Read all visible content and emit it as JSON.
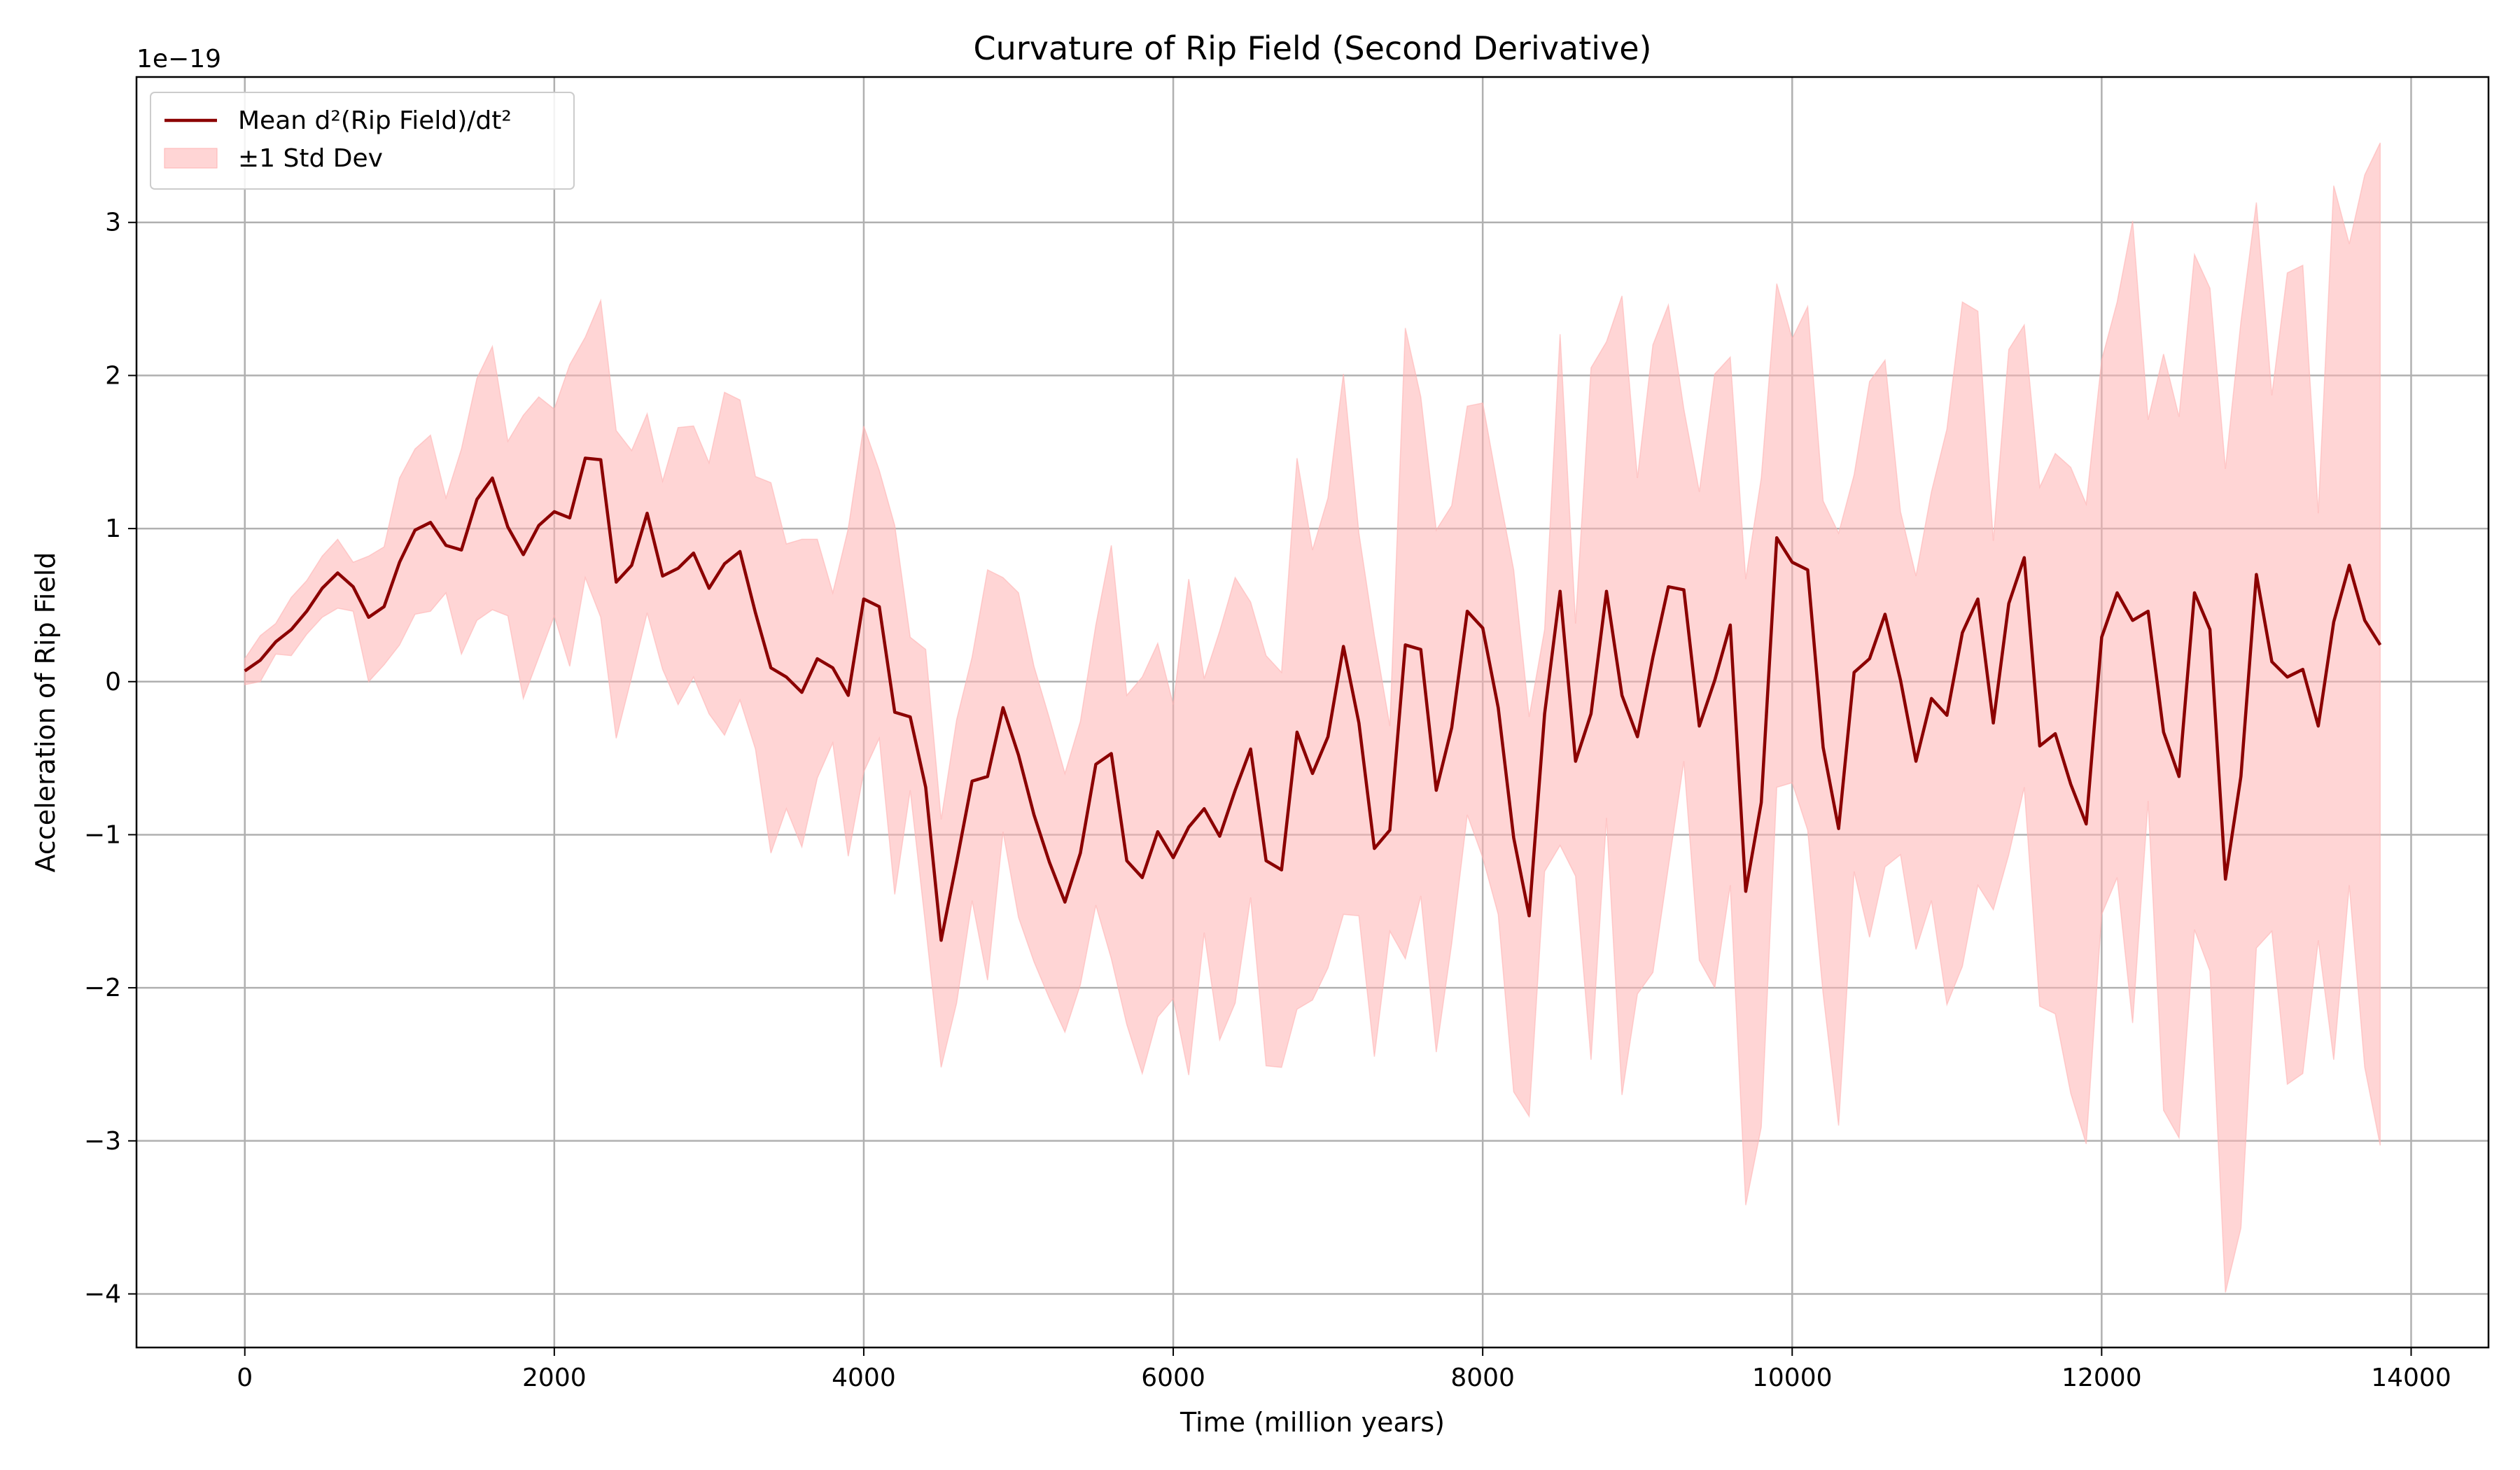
{
  "chart_data": {
    "type": "line",
    "title": "Curvature of Rip Field (Second Derivative)",
    "xlabel": "Time (million years)",
    "ylabel": "Acceleration of Rip Field",
    "offset_text": "1e−19",
    "xlim": [
      -700,
      14500
    ],
    "ylim": [
      -4.35,
      3.95
    ],
    "x_ticks": [
      0,
      2000,
      4000,
      6000,
      8000,
      10000,
      12000,
      14000
    ],
    "y_ticks": [
      -4,
      -3,
      -2,
      -1,
      0,
      1,
      2,
      3
    ],
    "x_tick_labels": [
      "0",
      "2000",
      "4000",
      "6000",
      "8000",
      "10000",
      "12000",
      "14000"
    ],
    "y_tick_labels": [
      "−4",
      "−3",
      "−2",
      "−1",
      "0",
      "1",
      "2",
      "3"
    ],
    "grid": true,
    "legend_position": "top-left",
    "x_step": 100,
    "series": [
      {
        "name": "Mean d²(Rip Field)/dt²",
        "kind": "line",
        "color": "#8b0000",
        "values": [
          0.07,
          0.14,
          0.26,
          0.34,
          0.46,
          0.61,
          0.71,
          0.62,
          0.42,
          0.49,
          0.78,
          0.99,
          1.04,
          0.89,
          0.86,
          1.19,
          1.33,
          1.01,
          0.83,
          1.02,
          1.11,
          1.07,
          1.46,
          1.45,
          0.65,
          0.76,
          1.1,
          0.69,
          0.74,
          0.84,
          0.61,
          0.77,
          0.85,
          0.45,
          0.09,
          0.03,
          -0.07,
          0.15,
          0.09,
          -0.09,
          0.54,
          0.49,
          -0.2,
          -0.23,
          -0.69,
          -1.69,
          -1.18,
          -0.65,
          -0.62,
          -0.17,
          -0.48,
          -0.87,
          -1.18,
          -1.44,
          -1.12,
          -0.54,
          -0.47,
          -1.17,
          -1.28,
          -0.98,
          -1.15,
          -0.95,
          -0.83,
          -1.01,
          -0.71,
          -0.44,
          -1.17,
          -1.23,
          -0.33,
          -0.6,
          -0.36,
          0.23,
          -0.27,
          -1.09,
          -0.97,
          0.24,
          0.21,
          -0.71,
          -0.3,
          0.46,
          0.35,
          -0.17,
          -1.02,
          -1.53,
          -0.21,
          0.59,
          -0.52,
          -0.21,
          0.59,
          -0.09,
          -0.36,
          0.16,
          0.62,
          0.6,
          -0.29,
          0.01,
          0.37,
          -1.37,
          -0.79,
          0.94,
          0.78,
          0.73,
          -0.43,
          -0.96,
          0.06,
          0.15,
          0.44,
          0.01,
          -0.52,
          -0.11,
          -0.22,
          0.32,
          0.54,
          -0.27,
          0.51,
          0.81,
          -0.42,
          -0.34,
          -0.67,
          -0.93,
          0.29,
          0.58,
          0.4,
          0.46,
          -0.33,
          -0.62,
          0.58,
          0.34,
          -1.29,
          -0.62,
          0.7,
          0.13,
          0.03,
          0.08,
          -0.29,
          0.39,
          0.76,
          0.4,
          0.24
        ]
      },
      {
        "name": "±1 Std Dev",
        "kind": "band",
        "color": "#ffb3b3",
        "upper": [
          0.15,
          0.3,
          0.38,
          0.55,
          0.66,
          0.82,
          0.93,
          0.78,
          0.82,
          0.88,
          1.33,
          1.52,
          1.61,
          1.2,
          1.52,
          1.98,
          2.19,
          1.57,
          1.74,
          1.86,
          1.78,
          2.07,
          2.25,
          2.49,
          1.64,
          1.51,
          1.75,
          1.31,
          1.66,
          1.67,
          1.43,
          1.89,
          1.84,
          1.34,
          1.3,
          0.9,
          0.93,
          0.93,
          0.58,
          1.0,
          1.67,
          1.38,
          1.02,
          0.29,
          0.21,
          -0.9,
          -0.25,
          0.16,
          0.73,
          0.68,
          0.58,
          0.1,
          -0.24,
          -0.6,
          -0.26,
          0.37,
          0.89,
          -0.09,
          0.03,
          0.25,
          -0.15,
          0.67,
          0.02,
          0.33,
          0.68,
          0.52,
          0.17,
          0.06,
          1.46,
          0.86,
          1.2,
          2.01,
          0.97,
          0.3,
          -0.29,
          2.31,
          1.86,
          0.99,
          1.15,
          1.8,
          1.82,
          1.26,
          0.73,
          -0.23,
          0.34,
          2.27,
          0.38,
          2.05,
          2.22,
          2.52,
          1.33,
          2.2,
          2.46,
          1.78,
          1.24,
          2.01,
          2.12,
          0.67,
          1.33,
          2.6,
          2.24,
          2.45,
          1.18,
          0.97,
          1.35,
          1.96,
          2.1,
          1.11,
          0.69,
          1.24,
          1.65,
          2.48,
          2.42,
          0.92,
          2.17,
          2.33,
          1.27,
          1.49,
          1.4,
          1.16,
          2.1,
          2.48,
          3.01,
          1.71,
          2.14,
          1.73,
          2.79,
          2.57,
          1.39,
          2.35,
          3.13,
          1.87,
          2.67,
          2.72,
          1.1,
          3.24,
          2.86,
          3.31,
          3.52
        ]
      }
    ],
    "band_lower": [
      -0.02,
      0.0,
      0.18,
      0.17,
      0.31,
      0.42,
      0.48,
      0.46,
      0.0,
      0.11,
      0.24,
      0.44,
      0.46,
      0.58,
      0.18,
      0.4,
      0.47,
      0.43,
      -0.11,
      0.16,
      0.43,
      0.1,
      0.68,
      0.42,
      -0.37,
      0.03,
      0.45,
      0.08,
      -0.15,
      0.03,
      -0.21,
      -0.35,
      -0.12,
      -0.44,
      -1.12,
      -0.83,
      -1.08,
      -0.63,
      -0.4,
      -1.14,
      -0.59,
      -0.37,
      -1.39,
      -0.71,
      -1.6,
      -2.52,
      -2.1,
      -1.43,
      -1.95,
      -0.98,
      -1.54,
      -1.83,
      -2.07,
      -2.29,
      -1.98,
      -1.46,
      -1.81,
      -2.24,
      -2.56,
      -2.19,
      -2.07,
      -2.57,
      -1.64,
      -2.34,
      -2.1,
      -1.41,
      -2.51,
      -2.52,
      -2.14,
      -2.08,
      -1.87,
      -1.52,
      -1.53,
      -2.45,
      -1.63,
      -1.81,
      -1.4,
      -2.42,
      -1.71,
      -0.87,
      -1.15,
      -1.52,
      -2.68,
      -2.84,
      -1.24,
      -1.07,
      -1.27,
      -2.47,
      -0.89,
      -2.7,
      -2.04,
      -1.9,
      -1.21,
      -0.52,
      -1.82,
      -2.0,
      -1.33,
      -3.42,
      -2.91,
      -0.69,
      -0.66,
      -0.97,
      -2.04,
      -2.9,
      -1.24,
      -1.67,
      -1.21,
      -1.13,
      -1.75,
      -1.43,
      -2.11,
      -1.86,
      -1.33,
      -1.49,
      -1.13,
      -0.69,
      -2.12,
      -2.17,
      -2.69,
      -3.02,
      -1.52,
      -1.28,
      -2.23,
      -0.78,
      -2.8,
      -2.98,
      -1.62,
      -1.89,
      -3.99,
      -3.57,
      -1.74,
      -1.63,
      -2.63,
      -2.56,
      -1.69,
      -2.47,
      -1.33,
      -2.52,
      -3.03
    ]
  }
}
